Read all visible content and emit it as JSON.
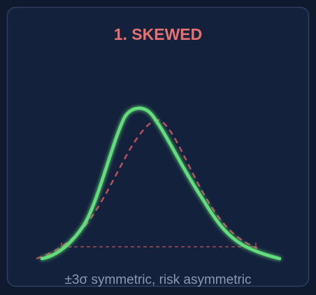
{
  "card": {
    "title": "1. SKEWED",
    "caption": "±3σ symmetric, risk asymmetric"
  }
}
